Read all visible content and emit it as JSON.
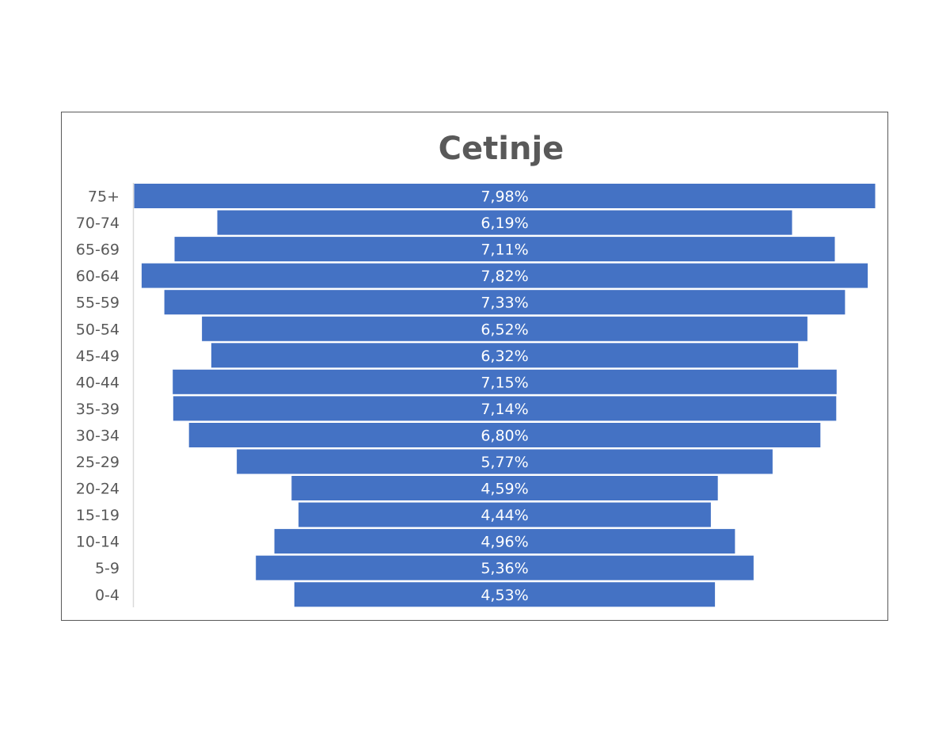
{
  "chart_data": {
    "type": "bar",
    "orientation": "horizontal",
    "style": "population-pyramid",
    "title": "Cetinje",
    "categories": [
      "75+",
      "70-74",
      "65-69",
      "60-64",
      "55-59",
      "50-54",
      "45-49",
      "40-44",
      "35-39",
      "30-34",
      "25-29",
      "20-24",
      "15-19",
      "10-14",
      "5-9",
      "0-4"
    ],
    "values": [
      7.98,
      6.19,
      7.11,
      7.82,
      7.33,
      6.52,
      6.32,
      7.15,
      7.14,
      6.8,
      5.77,
      4.59,
      4.44,
      4.96,
      5.36,
      4.53
    ],
    "data_labels": [
      "7,98%",
      "6,19%",
      "7,11%",
      "7,82%",
      "7,33%",
      "6,52%",
      "6,32%",
      "7,15%",
      "7,14%",
      "6,80%",
      "5,77%",
      "4,59%",
      "4,44%",
      "4,96%",
      "5,36%",
      "4,53%"
    ],
    "unit": "%",
    "bar_color": "#4472C4",
    "grid": false,
    "legend": "none"
  }
}
